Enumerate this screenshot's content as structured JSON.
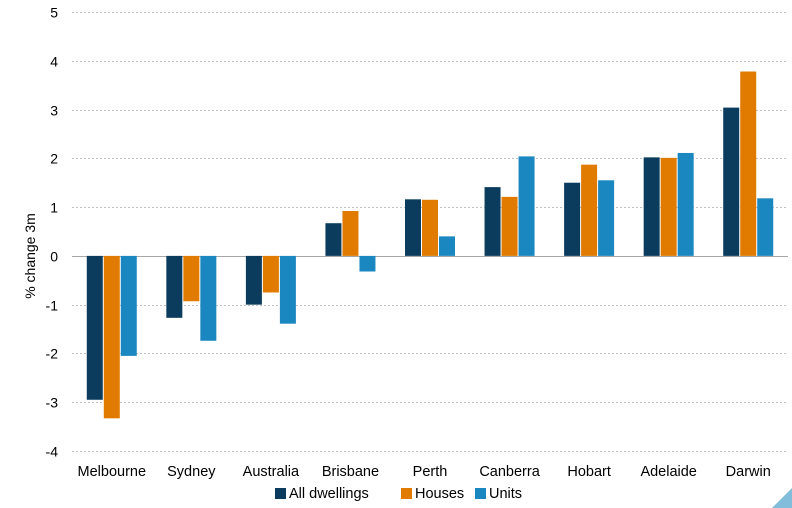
{
  "chart_data": {
    "type": "bar",
    "ylabel": "% change 3m",
    "ylim": [
      -4,
      5
    ],
    "yticks": [
      -4,
      -3,
      -2,
      -1,
      0,
      1,
      2,
      3,
      4,
      5
    ],
    "grid": true,
    "legend_position": "bottom",
    "categories": [
      "Melbourne",
      "Sydney",
      "Australia",
      "Brisbane",
      "Perth",
      "Canberra",
      "Hobart",
      "Adelaide",
      "Darwin"
    ],
    "series": [
      {
        "name": "All dwellings",
        "color": "#0b3c5d",
        "values": [
          -2.95,
          -1.27,
          -1.0,
          0.67,
          1.16,
          1.41,
          1.5,
          2.02,
          3.04
        ]
      },
      {
        "name": "Houses",
        "color": "#e07b00",
        "values": [
          -3.33,
          -0.93,
          -0.75,
          0.92,
          1.15,
          1.21,
          1.87,
          2.01,
          3.78
        ]
      },
      {
        "name": "Units",
        "color": "#1b87c0",
        "values": [
          -2.05,
          -1.74,
          -1.39,
          -0.32,
          0.4,
          2.04,
          1.55,
          2.11,
          1.18
        ]
      }
    ]
  }
}
